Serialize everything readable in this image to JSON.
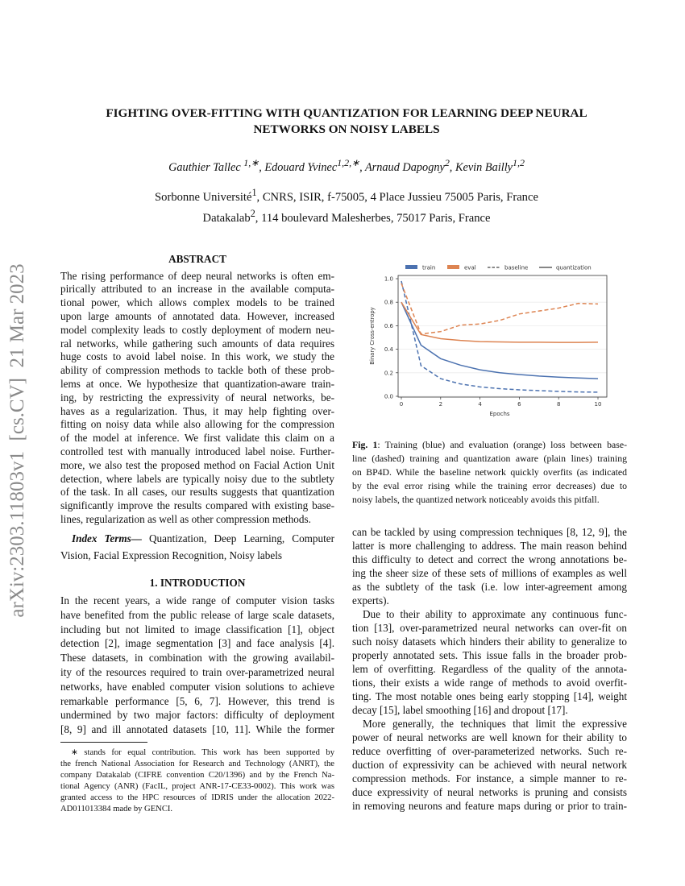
{
  "side_id": "arXiv:2303.11803v1  [cs.CV]  21 Mar 2023",
  "title": [
    "FIGHTING OVER-FITTING WITH QUANTIZATION FOR LEARNING DEEP NEURAL",
    "NETWORKS ON NOISY LABELS"
  ],
  "authors": [
    {
      "name": "Gauthier Tallec ",
      "sup": "1,∗"
    },
    {
      "name": ", Edouard Yvinec",
      "sup": "1,2,∗"
    },
    {
      "name": ", Arnaud Dapogny",
      "sup": "2"
    },
    {
      "name": ", Kevin Bailly",
      "sup": "1,2"
    }
  ],
  "affiliations": [
    {
      "pre": "Sorbonne Université",
      "sup": "1",
      "post": ", CNRS, ISIR, f-75005, 4 Place Jussieu 75005 Paris, France"
    },
    {
      "pre": "Datakalab",
      "sup": "2",
      "post": ", 114 boulevard Malesherbes, 75017 Paris, France"
    }
  ],
  "abstract": {
    "heading": "ABSTRACT",
    "paragraphs": [
      [
        "The rising performance of deep neural networks is often em-",
        "pirically attributed to an increase in the available computa-",
        "tional power, which allows complex models to be trained",
        "upon large amounts of annotated data. However, increased",
        "model complexity leads to costly deployment of modern neu-",
        "ral networks, while gathering such amounts of data requires",
        "huge costs to avoid label noise. In this work, we study the",
        "ability of compression methods to tackle both of these prob-",
        "lems at once. We hypothesize that quantization-aware train-",
        "ing, by restricting the expressivity of neural networks, be-",
        "haves as a regularization. Thus, it may help fighting over-",
        "fitting on noisy data while also allowing for the compression",
        "of the model at inference. We first validate this claim on a",
        "controlled test with manually introduced label noise. Further-",
        "more, we also test the proposed method on Facial Action Unit",
        "detection, where labels are typically noisy due to the subtlety",
        "of the task. In all cases, our results suggests that quantization",
        "significantly improve the results compared with existing base-",
        "lines, regularization as well as other compression methods."
      ]
    ]
  },
  "index_terms": {
    "label": "Index Terms—",
    "lines": [
      "Quantization, Deep Learning, Computer",
      "Vision, Facial Expression Recognition, Noisy labels"
    ]
  },
  "intro": {
    "heading": "1. INTRODUCTION",
    "paragraphs": [
      [
        "In the recent years, a wide range of computer vision tasks",
        "have benefited from the public release of large scale datasets,",
        "including but not limited to image classification [1], object",
        "detection [2], image segmentation [3] and face analysis [4].",
        "These datasets, in combination with the growing availabil-",
        "ity of the resources required to train over-parametrized neural",
        "networks, have enabled computer vision solutions to achieve",
        "remarkable performance [5, 6, 7]. However, this trend is",
        "undermined by two major factors: difficulty of deployment",
        "[8, 9] and ill annotated datasets [10, 11]. While the former"
      ]
    ]
  },
  "footnote": [
    "∗ stands for equal contribution. This work has been supported by",
    "the french National Association for Research and Technology (ANRT), the",
    "company Datakalab (CIFRE convention C20/1396) and by the French Na-",
    "tional Agency (ANR) (FacIL, project ANR-17-CE33-0002). This work was",
    "granted access to the HPC resources of IDRIS under the allocation 2022-",
    "AD011013384 made by GENCI."
  ],
  "caption": {
    "label": "Fig. 1",
    "first": ": Training (blue) and evaluation (orange) loss between base-",
    "lines": [
      "line (dashed) training and quantization aware (plain lines) training",
      "on BP4D. While the baseline network quickly overfits (as indicated",
      "by the eval error rising while the training error decreases) due to",
      "noisy labels, the quantized network noticeably avoids this pitfall."
    ]
  },
  "right_body": {
    "paragraphs": [
      [
        "can be tackled by using compression techniques [8, 12, 9], the",
        "latter is more challenging to address. The main reason behind",
        "this difficulty to detect and correct the wrong annotations be-",
        "ing the sheer size of these sets of millions of examples as well",
        "as the subtlety of the task (i.e. low inter-agreement among",
        "experts)."
      ],
      [
        "Due to their ability to approximate any continuous func-",
        "tion [13], over-parametrized neural networks can over-fit on",
        "such noisy datasets which hinders their ability to generalize to",
        "properly annotated sets. This issue falls in the broader prob-",
        "lem of overfitting. Regardless of the quality of the annota-",
        "tions, their exists a wide range of methods to avoid overfit-",
        "ting. The most notable ones being early stopping [14], weight",
        "decay [15], label smoothing [16] and dropout [17]."
      ],
      [
        "More generally, the techniques that limit the expressive",
        "power of neural networks are well known for their ability to",
        "reduce overfitting of over-parameterized networks. Such re-",
        "duction of expressivity can be achieved with neural network",
        "compression methods. For instance, a simple manner to re-",
        "duce expressivity of neural networks is pruning and consists",
        "in removing neurons and feature maps during or prior to train-"
      ]
    ],
    "last_continues": true
  },
  "chart_data": {
    "type": "line",
    "title": "",
    "xlabel": "Epochs",
    "ylabel": "Binary Cross-entropy",
    "x": [
      0,
      1,
      2,
      3,
      4,
      5,
      6,
      7,
      8,
      9,
      10
    ],
    "xlim": [
      0,
      10
    ],
    "ylim": [
      0,
      1.0
    ],
    "xticks": [
      "0",
      "2",
      "4",
      "6",
      "8",
      "10"
    ],
    "yticks": [
      "0.0",
      "0.2",
      "0.4",
      "0.6",
      "0.8",
      "1.0"
    ],
    "grid": true,
    "legend_position": "top-outside",
    "legend": [
      "train",
      "eval",
      "baseline",
      "quantization"
    ],
    "colors": {
      "train": "#4c72b0",
      "eval": "#dd8452"
    },
    "series": [
      {
        "name": "train / quantization",
        "color": "#4c72b0",
        "style": "solid",
        "values": [
          0.8,
          0.435,
          0.32,
          0.265,
          0.225,
          0.2,
          0.185,
          0.172,
          0.163,
          0.156,
          0.15
        ]
      },
      {
        "name": "train / baseline",
        "color": "#4c72b0",
        "style": "dashed",
        "values": [
          0.98,
          0.26,
          0.15,
          0.105,
          0.08,
          0.065,
          0.055,
          0.048,
          0.042,
          0.037,
          0.035
        ]
      },
      {
        "name": "eval / quantization",
        "color": "#dd8452",
        "style": "solid",
        "values": [
          0.8,
          0.525,
          0.49,
          0.475,
          0.465,
          0.462,
          0.46,
          0.46,
          0.458,
          0.458,
          0.46
        ]
      },
      {
        "name": "eval / baseline",
        "color": "#dd8452",
        "style": "dashed",
        "values": [
          0.96,
          0.53,
          0.55,
          0.605,
          0.615,
          0.645,
          0.7,
          0.725,
          0.75,
          0.79,
          0.785
        ]
      }
    ]
  }
}
